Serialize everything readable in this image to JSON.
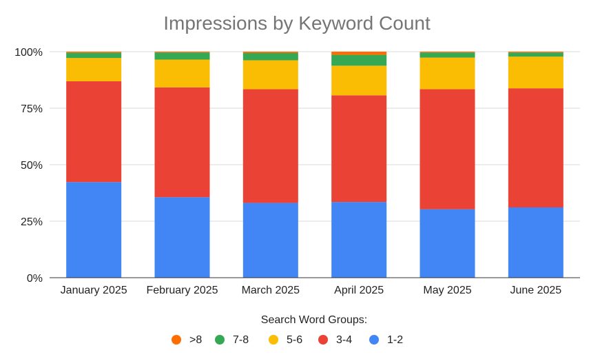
{
  "chart_data": {
    "type": "bar",
    "stacked": true,
    "normalized": true,
    "title": "Impressions by Keyword Count",
    "xlabel": "",
    "ylabel": "",
    "ylim": [
      0,
      100
    ],
    "y_ticks": [
      "0%",
      "25%",
      "50%",
      "75%",
      "100%"
    ],
    "y_tick_values": [
      0,
      25,
      50,
      75,
      100
    ],
    "grid": true,
    "legend_title": "Search Word Groups:",
    "legend_position": "bottom",
    "categories": [
      "January 2025",
      "February 2025",
      "March 2025",
      "April 2025",
      "May 2025",
      "June 2025"
    ],
    "series": [
      {
        "name": "1-2",
        "color": "#4285f4",
        "values": [
          42.3,
          35.6,
          33.1,
          33.5,
          30.3,
          31.1
        ]
      },
      {
        "name": "3-4",
        "color": "#ea4335",
        "values": [
          44.6,
          48.6,
          50.3,
          47.2,
          53.1,
          52.7
        ]
      },
      {
        "name": "5-6",
        "color": "#fbbc04",
        "values": [
          10.3,
          12.3,
          12.8,
          13.1,
          14.0,
          14.0
        ]
      },
      {
        "name": "7-8",
        "color": "#34a853",
        "values": [
          2.3,
          3.1,
          3.2,
          4.8,
          2.2,
          1.8
        ]
      },
      {
        "name": ">8",
        "color": "#ff6d01",
        "values": [
          0.5,
          0.4,
          0.6,
          1.4,
          0.4,
          0.4
        ]
      }
    ],
    "legend_order": [
      ">8",
      "7-8",
      "5-6",
      "3-4",
      "1-2"
    ]
  }
}
